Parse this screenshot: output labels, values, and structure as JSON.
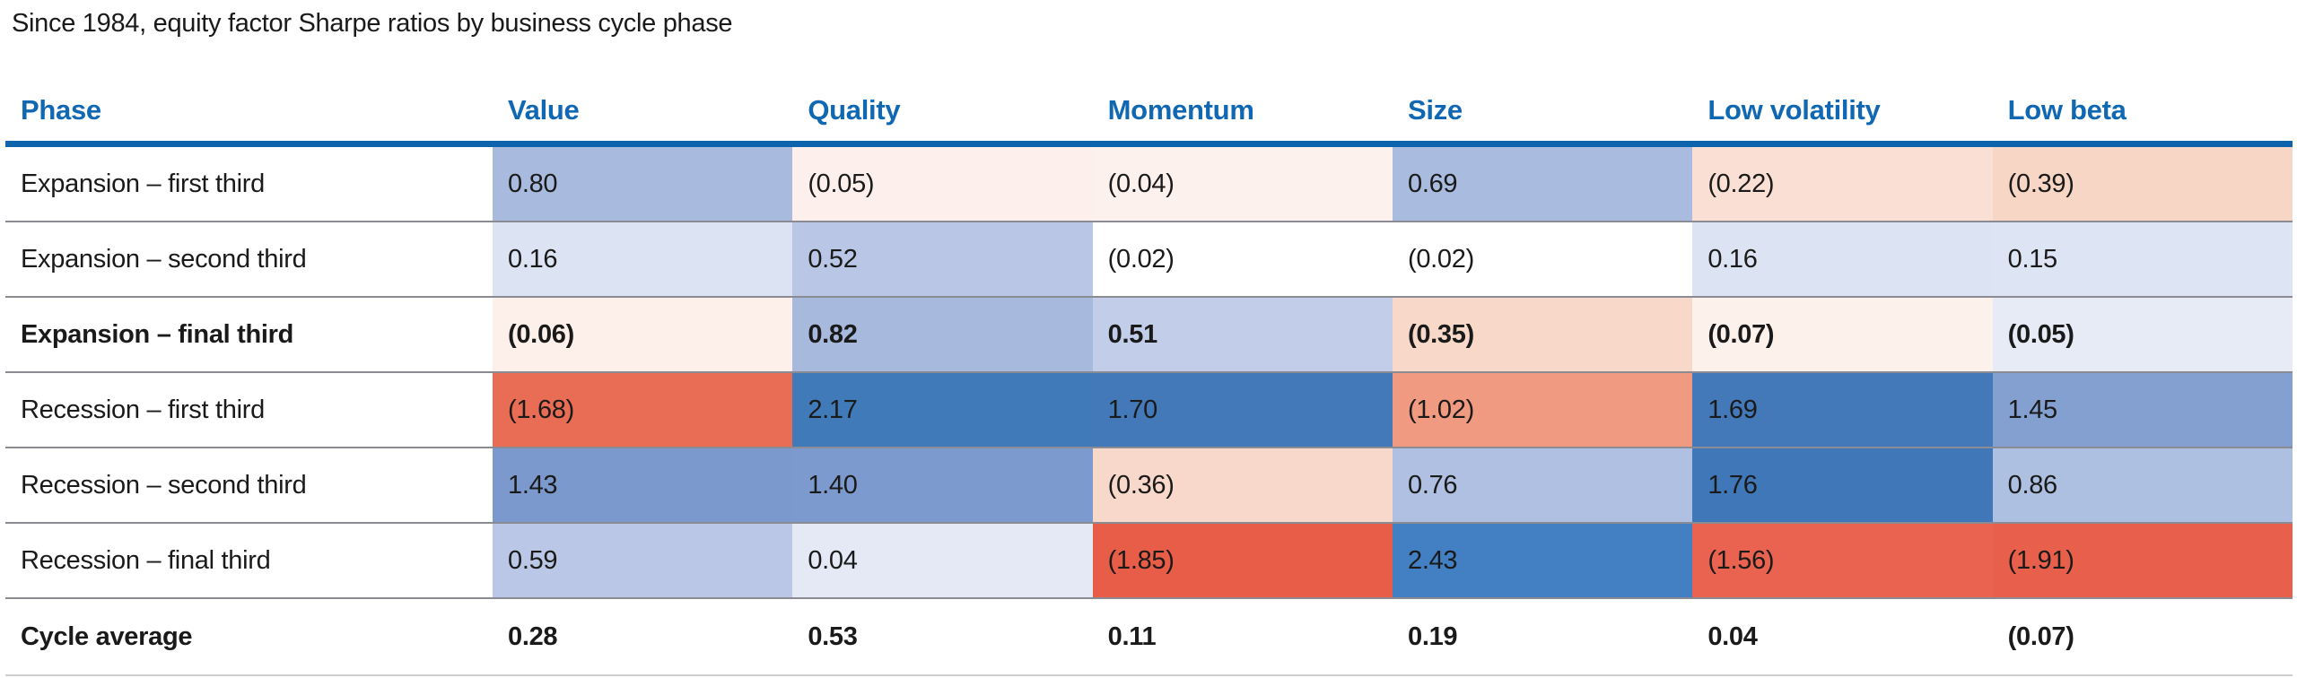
{
  "title": "Since 1984, equity factor Sharpe ratios by business cycle phase",
  "colors": {
    "header_text": "#1068b3",
    "header_rule": "#0d64ad",
    "row_separator": "#8b8b93",
    "footer_rule": "#cfcfcf",
    "strong_positive_blue": "#4379b9",
    "strong_negative_red": "#e8604b",
    "neutral_white": "#ffffff"
  },
  "table": {
    "columns": [
      "Phase",
      "Value",
      "Quality",
      "Momentum",
      "Size",
      "Low volatility",
      "Low beta"
    ],
    "rows": [
      {
        "label": "Expansion – first third",
        "bold": false,
        "cells": [
          {
            "text": "0.80",
            "bg": "#a8bade"
          },
          {
            "text": "(0.05)",
            "bg": "#fdf0ec"
          },
          {
            "text": "(0.04)",
            "bg": "#fdf1ee"
          },
          {
            "text": "0.69",
            "bg": "#a9bbde"
          },
          {
            "text": "(0.22)",
            "bg": "#fadfd4"
          },
          {
            "text": "(0.39)",
            "bg": "#f8d6c6"
          }
        ]
      },
      {
        "label": "Expansion – second third",
        "bold": false,
        "cells": [
          {
            "text": "0.16",
            "bg": "#dce3f2"
          },
          {
            "text": "0.52",
            "bg": "#b9c6e5"
          },
          {
            "text": "(0.02)",
            "bg": "#ffffff"
          },
          {
            "text": "(0.02)",
            "bg": "#ffffff"
          },
          {
            "text": "0.16",
            "bg": "#dce3f2"
          },
          {
            "text": "0.15",
            "bg": "#dde4f3"
          }
        ]
      },
      {
        "label": "Expansion – final third",
        "bold": true,
        "cells": [
          {
            "text": "(0.06)",
            "bg": "#fdefe9"
          },
          {
            "text": "0.82",
            "bg": "#a7b9dd"
          },
          {
            "text": "0.51",
            "bg": "#c2cdea"
          },
          {
            "text": "(0.35)",
            "bg": "#f8d8c8"
          },
          {
            "text": "(0.07)",
            "bg": "#fdf1ec"
          },
          {
            "text": "(0.05)",
            "bg": "#e7ebf6"
          }
        ]
      },
      {
        "label": "Recession – first third",
        "bold": false,
        "cells": [
          {
            "text": "(1.68)",
            "bg": "#e96c55"
          },
          {
            "text": "2.17",
            "bg": "#417ab9"
          },
          {
            "text": "1.70",
            "bg": "#4379b9"
          },
          {
            "text": "(1.02)",
            "bg": "#f09a81"
          },
          {
            "text": "1.69",
            "bg": "#4379b9"
          },
          {
            "text": "1.45",
            "bg": "#84a0d0"
          }
        ]
      },
      {
        "label": "Recession – second third",
        "bold": false,
        "cells": [
          {
            "text": "1.43",
            "bg": "#7b99cc"
          },
          {
            "text": "1.40",
            "bg": "#7c9acd"
          },
          {
            "text": "(0.36)",
            "bg": "#f8d8ca"
          },
          {
            "text": "0.76",
            "bg": "#b0c0e2"
          },
          {
            "text": "1.76",
            "bg": "#4077b8"
          },
          {
            "text": "0.86",
            "bg": "#aec0e2"
          }
        ]
      },
      {
        "label": "Recession – final third",
        "bold": false,
        "cells": [
          {
            "text": "0.59",
            "bg": "#bac7e6"
          },
          {
            "text": "0.04",
            "bg": "#e4e9f5"
          },
          {
            "text": "(1.85)",
            "bg": "#e85d47"
          },
          {
            "text": "2.43",
            "bg": "#437fc3"
          },
          {
            "text": "(1.56)",
            "bg": "#e96350"
          },
          {
            "text": "(1.91)",
            "bg": "#e8604b"
          }
        ]
      }
    ],
    "footer": {
      "label": "Cycle average",
      "cells": [
        "0.28",
        "0.53",
        "0.11",
        "0.19",
        "0.04",
        "(0.07)"
      ]
    }
  },
  "chart_data": {
    "type": "heatmap",
    "title": "Since 1984, equity factor Sharpe ratios by business cycle phase",
    "columns": [
      "Value",
      "Quality",
      "Momentum",
      "Size",
      "Low volatility",
      "Low beta"
    ],
    "rows": [
      "Expansion – first third",
      "Expansion – second third",
      "Expansion – final third",
      "Recession – first third",
      "Recession – second third",
      "Recession – final third"
    ],
    "values": [
      [
        0.8,
        -0.05,
        -0.04,
        0.69,
        -0.22,
        -0.39
      ],
      [
        0.16,
        0.52,
        -0.02,
        -0.02,
        0.16,
        0.15
      ],
      [
        -0.06,
        0.82,
        0.51,
        -0.35,
        -0.07,
        -0.05
      ],
      [
        -1.68,
        2.17,
        1.7,
        -1.02,
        1.69,
        1.45
      ],
      [
        1.43,
        1.4,
        -0.36,
        0.76,
        1.76,
        0.86
      ],
      [
        0.59,
        0.04,
        -1.85,
        2.43,
        -1.56,
        -1.91
      ]
    ],
    "cycle_average": [
      0.28,
      0.53,
      0.11,
      0.19,
      0.04,
      -0.07
    ],
    "notes": "Negative values shown in parentheses; cell shading runs red (negative) through white (zero) to blue (positive)."
  }
}
